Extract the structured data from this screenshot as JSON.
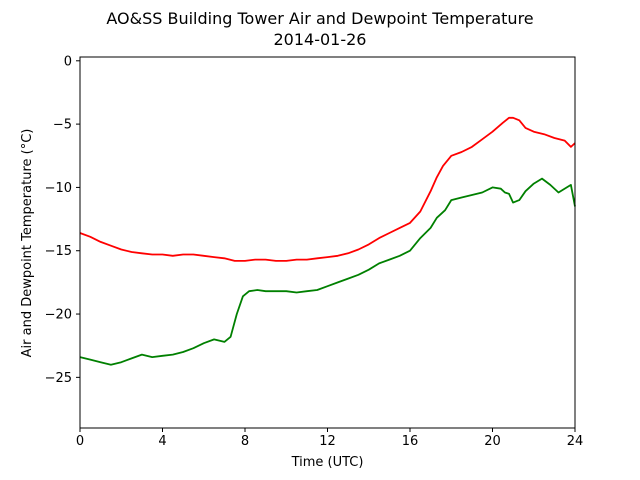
{
  "chart_data": {
    "type": "line",
    "title": "AO&SS Building Tower Air and Dewpoint Temperature",
    "subtitle": "2014-01-26",
    "xlabel": "Time (UTC)",
    "ylabel": "Air and Dewpoint Temperature (°C)",
    "xlim": [
      0,
      24
    ],
    "ylim": [
      -29,
      0.3
    ],
    "xticks": [
      0,
      4,
      8,
      12,
      16,
      20,
      24
    ],
    "yticks": [
      0,
      -5,
      -10,
      -15,
      -20,
      -25
    ],
    "grid": false,
    "legend": "none",
    "series": [
      {
        "color": "#ff0000",
        "x": [
          0,
          0.5,
          1,
          1.5,
          2,
          2.5,
          3,
          3.5,
          4,
          4.5,
          5,
          5.5,
          6,
          6.5,
          7,
          7.5,
          8,
          8.5,
          9,
          9.5,
          10,
          10.5,
          11,
          11.5,
          12,
          12.5,
          13,
          13.5,
          14,
          14.5,
          15,
          15.5,
          16,
          16.5,
          17,
          17.3,
          17.6,
          18,
          18.5,
          19,
          19.5,
          20,
          20.5,
          20.8,
          21,
          21.3,
          21.6,
          22,
          22.5,
          23,
          23.5,
          23.8,
          24
        ],
        "values": [
          -13.6,
          -13.9,
          -14.3,
          -14.6,
          -14.9,
          -15.1,
          -15.2,
          -15.3,
          -15.3,
          -15.4,
          -15.3,
          -15.3,
          -15.4,
          -15.5,
          -15.6,
          -15.8,
          -15.8,
          -15.7,
          -15.7,
          -15.8,
          -15.8,
          -15.7,
          -15.7,
          -15.6,
          -15.5,
          -15.4,
          -15.2,
          -14.9,
          -14.5,
          -14.0,
          -13.6,
          -13.2,
          -12.8,
          -11.9,
          -10.3,
          -9.2,
          -8.3,
          -7.5,
          -7.2,
          -6.8,
          -6.2,
          -5.6,
          -4.9,
          -4.5,
          -4.5,
          -4.7,
          -5.3,
          -5.6,
          -5.8,
          -6.1,
          -6.3,
          -6.8,
          -6.5
        ]
      },
      {
        "color": "#008000",
        "x": [
          0,
          0.5,
          1,
          1.5,
          2,
          2.5,
          3,
          3.5,
          4,
          4.5,
          5,
          5.5,
          6,
          6.5,
          7,
          7.3,
          7.6,
          7.9,
          8.2,
          8.6,
          9,
          9.5,
          10,
          10.5,
          11,
          11.5,
          12,
          12.5,
          13,
          13.5,
          14,
          14.5,
          15,
          15.5,
          16,
          16.5,
          17,
          17.3,
          17.7,
          18,
          18.5,
          19,
          19.5,
          20,
          20.4,
          20.6,
          20.8,
          21,
          21.3,
          21.6,
          22,
          22.4,
          22.8,
          23.2,
          23.6,
          23.8,
          24
        ],
        "values": [
          -23.4,
          -23.6,
          -23.8,
          -24.0,
          -23.8,
          -23.5,
          -23.2,
          -23.4,
          -23.3,
          -23.2,
          -23.0,
          -22.7,
          -22.3,
          -22.0,
          -22.2,
          -21.8,
          -20.0,
          -18.6,
          -18.2,
          -18.1,
          -18.2,
          -18.2,
          -18.2,
          -18.3,
          -18.2,
          -18.1,
          -17.8,
          -17.5,
          -17.2,
          -16.9,
          -16.5,
          -16.0,
          -15.7,
          -15.4,
          -15.0,
          -14.0,
          -13.2,
          -12.4,
          -11.8,
          -11.0,
          -10.8,
          -10.6,
          -10.4,
          -10.0,
          -10.1,
          -10.4,
          -10.5,
          -11.2,
          -11.0,
          -10.3,
          -9.7,
          -9.3,
          -9.8,
          -10.4,
          -10.0,
          -9.8,
          -11.5
        ]
      }
    ]
  }
}
